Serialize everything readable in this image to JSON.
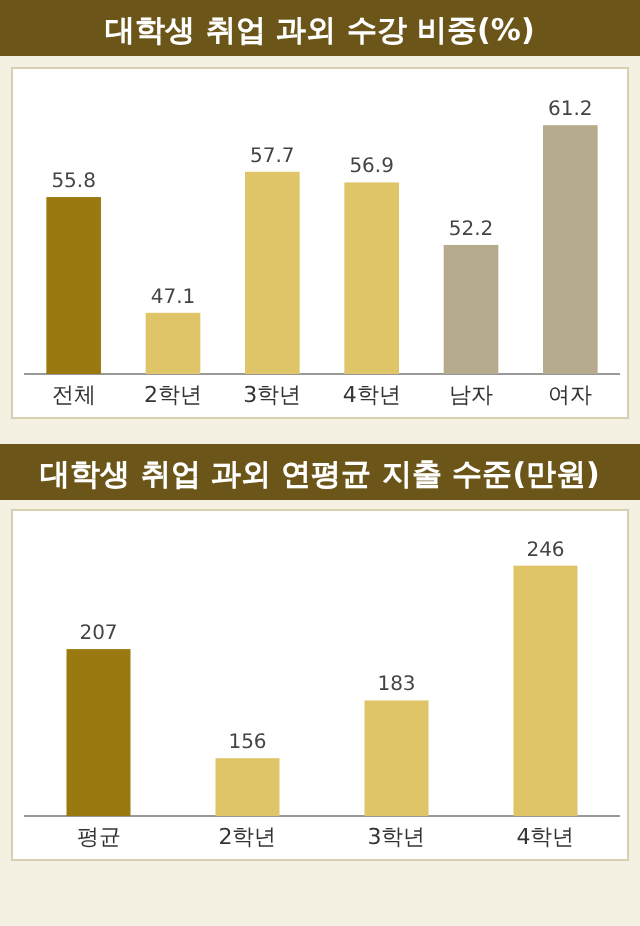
{
  "chart_data": [
    {
      "type": "bar",
      "title": "대학생 취업 과외 수강 비중(%)",
      "categories": [
        "전체",
        "2학년",
        "3학년",
        "4학년",
        "남자",
        "여자"
      ],
      "values": [
        55.8,
        47.1,
        57.7,
        56.9,
        52.2,
        61.2
      ],
      "colors": [
        "#9a7a10",
        "#e0c468",
        "#e0c468",
        "#e0c468",
        "#b6aa8c",
        "#b6aa8c"
      ],
      "data_labels": true,
      "ylim": [
        42.5,
        65.5
      ]
    },
    {
      "type": "bar",
      "title": "대학생 취업 과외 연평균 지출 수준(만원)",
      "categories": [
        "평균",
        "2학년",
        "3학년",
        "4학년"
      ],
      "values": [
        207,
        156,
        183,
        246
      ],
      "colors": [
        "#9a7a10",
        "#e0c468",
        "#e0c468",
        "#e0c468"
      ],
      "data_labels": true,
      "ylim": [
        129,
        272
      ]
    }
  ]
}
